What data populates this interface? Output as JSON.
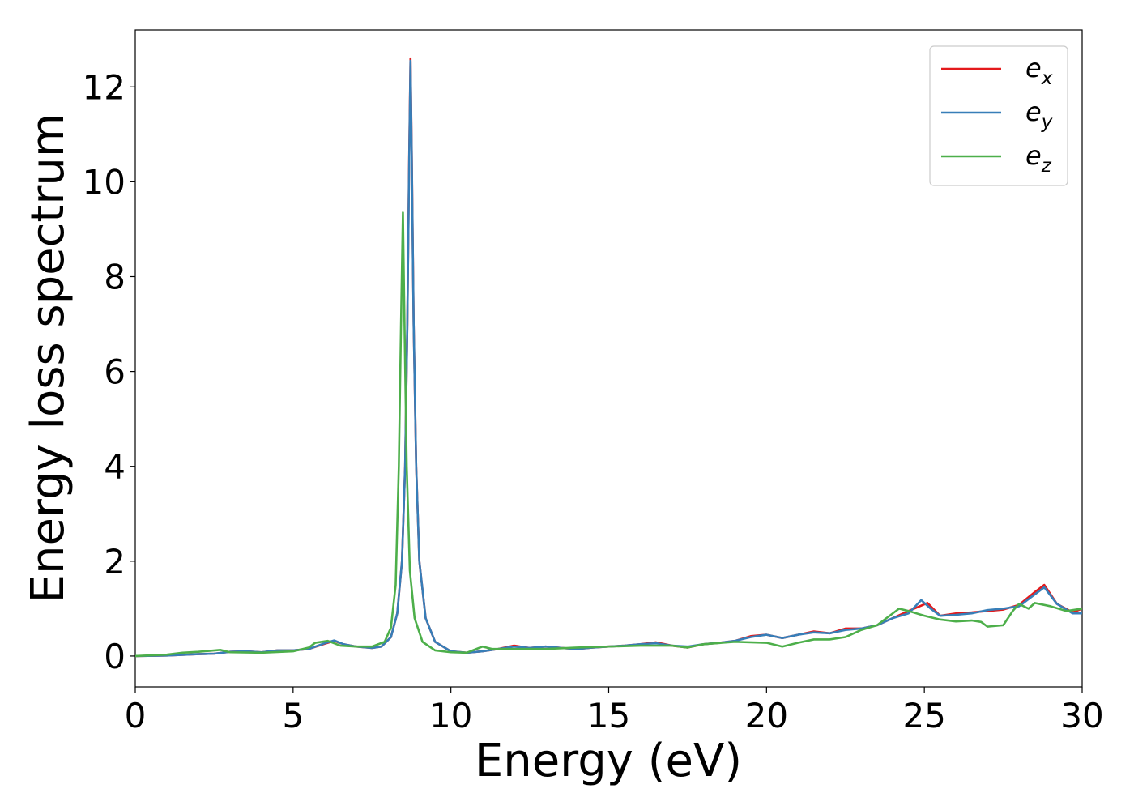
{
  "chart_data": {
    "type": "line",
    "xlabel": "Energy (eV)",
    "ylabel": "Energy loss spectrum",
    "xlim": [
      0,
      30
    ],
    "ylim": [
      -0.65,
      13.2
    ],
    "xticks": [
      0,
      5,
      10,
      15,
      20,
      25,
      30
    ],
    "yticks": [
      0,
      2,
      4,
      6,
      8,
      10,
      12
    ],
    "legend": "upper right",
    "series": [
      {
        "name": "e_x",
        "color": "#e41a1c",
        "x": [
          0,
          1,
          2,
          2.5,
          3,
          3.5,
          4,
          4.5,
          5,
          5.5,
          6,
          6.3,
          6.6,
          7,
          7.5,
          7.8,
          8.1,
          8.3,
          8.45,
          8.55,
          8.62,
          8.68,
          8.72,
          8.76,
          8.82,
          8.9,
          9.0,
          9.2,
          9.5,
          10,
          10.5,
          11,
          11.5,
          12,
          12.5,
          13,
          13.5,
          14,
          14.5,
          15,
          15.5,
          16,
          16.5,
          17,
          17.5,
          18,
          18.5,
          19,
          19.5,
          20,
          20.5,
          21,
          21.5,
          22,
          22.5,
          23,
          23.5,
          24,
          24.5,
          25.1,
          25.5,
          26,
          26.5,
          27,
          27.5,
          28,
          28.5,
          28.8,
          29.2,
          29.7,
          30
        ],
        "values": [
          0,
          0.01,
          0.04,
          0.05,
          0.09,
          0.1,
          0.08,
          0.12,
          0.12,
          0.15,
          0.26,
          0.32,
          0.25,
          0.2,
          0.17,
          0.2,
          0.4,
          0.9,
          2.0,
          4.0,
          7.0,
          10.6,
          12.6,
          10.6,
          7.0,
          4.0,
          2.0,
          0.8,
          0.3,
          0.1,
          0.07,
          0.1,
          0.15,
          0.22,
          0.17,
          0.2,
          0.17,
          0.15,
          0.18,
          0.2,
          0.22,
          0.25,
          0.29,
          0.22,
          0.18,
          0.25,
          0.28,
          0.32,
          0.42,
          0.45,
          0.38,
          0.45,
          0.52,
          0.48,
          0.58,
          0.58,
          0.65,
          0.8,
          0.95,
          1.12,
          0.85,
          0.9,
          0.92,
          0.95,
          0.98,
          1.08,
          1.35,
          1.5,
          1.1,
          0.92,
          1.0
        ]
      },
      {
        "name": "e_y",
        "color": "#377eb8",
        "x": [
          0,
          1,
          2,
          2.5,
          3,
          3.5,
          4,
          4.5,
          5,
          5.5,
          6,
          6.3,
          6.6,
          7,
          7.5,
          7.8,
          8.1,
          8.3,
          8.45,
          8.55,
          8.62,
          8.68,
          8.72,
          8.76,
          8.82,
          8.9,
          9.0,
          9.2,
          9.5,
          10,
          10.5,
          11,
          11.5,
          12,
          12.5,
          13,
          13.5,
          14,
          14.5,
          15,
          15.5,
          16,
          16.5,
          17,
          17.5,
          18,
          18.5,
          19,
          19.5,
          20,
          20.5,
          21,
          21.5,
          22,
          22.5,
          23,
          23.5,
          24,
          24.5,
          24.9,
          25.2,
          25.5,
          26,
          26.5,
          27,
          27.5,
          28,
          28.5,
          28.8,
          29.2,
          29.7,
          30
        ],
        "values": [
          0,
          0.01,
          0.04,
          0.05,
          0.09,
          0.1,
          0.08,
          0.12,
          0.12,
          0.15,
          0.27,
          0.33,
          0.25,
          0.2,
          0.17,
          0.2,
          0.4,
          0.9,
          2.0,
          4.0,
          7.0,
          10.5,
          12.55,
          10.5,
          7.0,
          4.0,
          2.0,
          0.8,
          0.3,
          0.1,
          0.07,
          0.1,
          0.15,
          0.2,
          0.17,
          0.2,
          0.17,
          0.15,
          0.18,
          0.2,
          0.22,
          0.25,
          0.27,
          0.22,
          0.2,
          0.25,
          0.28,
          0.32,
          0.4,
          0.45,
          0.38,
          0.45,
          0.5,
          0.48,
          0.55,
          0.58,
          0.65,
          0.8,
          0.9,
          1.18,
          1.0,
          0.85,
          0.87,
          0.9,
          0.97,
          1.0,
          1.05,
          1.3,
          1.45,
          1.1,
          0.9,
          0.9
        ]
      },
      {
        "name": "e_z",
        "color": "#4daf4a",
        "x": [
          0,
          1,
          1.5,
          2,
          2.7,
          3,
          4,
          5,
          5.5,
          5.7,
          6.1,
          6.5,
          7,
          7.5,
          7.9,
          8.1,
          8.25,
          8.35,
          8.42,
          8.48,
          8.53,
          8.6,
          8.7,
          8.85,
          9.1,
          9.5,
          10,
          10.5,
          11,
          11.3,
          12,
          13,
          14,
          15,
          16,
          17,
          17.5,
          18,
          19,
          20,
          20.5,
          21,
          21.5,
          22,
          22.5,
          23,
          23.5,
          24,
          24.2,
          24.5,
          25,
          25.5,
          26,
          26.5,
          26.8,
          27,
          27.5,
          27.8,
          28,
          28.3,
          28.5,
          29,
          29.5,
          30
        ],
        "values": [
          0,
          0.03,
          0.07,
          0.09,
          0.13,
          0.08,
          0.07,
          0.1,
          0.18,
          0.28,
          0.32,
          0.22,
          0.2,
          0.2,
          0.3,
          0.6,
          1.5,
          4.0,
          7.0,
          9.35,
          7.0,
          4.0,
          1.8,
          0.8,
          0.3,
          0.12,
          0.08,
          0.07,
          0.2,
          0.15,
          0.15,
          0.15,
          0.18,
          0.2,
          0.22,
          0.22,
          0.18,
          0.25,
          0.3,
          0.28,
          0.2,
          0.28,
          0.35,
          0.35,
          0.4,
          0.55,
          0.65,
          0.9,
          1.0,
          0.95,
          0.85,
          0.77,
          0.73,
          0.75,
          0.72,
          0.62,
          0.65,
          0.95,
          1.1,
          1.0,
          1.12,
          1.05,
          0.95,
          1.0
        ]
      }
    ]
  }
}
